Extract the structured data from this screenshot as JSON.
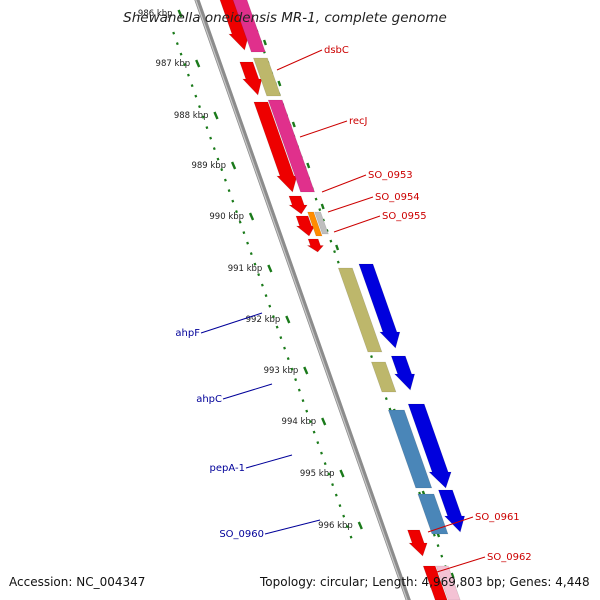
{
  "title": "Shewanella oneidensis MR-1, complete genome",
  "footer": {
    "accession": "Accession: NC_004347",
    "summary": "Topology: circular; Length: 4,969,803 bp; Genes: 4,448"
  },
  "kbp_ticks": [
    {
      "label": "986 kbp",
      "pos": 986
    },
    {
      "label": "987 kbp",
      "pos": 987
    },
    {
      "label": "988 kbp",
      "pos": 988
    },
    {
      "label": "989 kbp",
      "pos": 989
    },
    {
      "label": "990 kbp",
      "pos": 990
    },
    {
      "label": "991 kbp",
      "pos": 991
    },
    {
      "label": "992 kbp",
      "pos": 992
    },
    {
      "label": "993 kbp",
      "pos": 993
    },
    {
      "label": "994 kbp",
      "pos": 994
    },
    {
      "label": "995 kbp",
      "pos": 995
    },
    {
      "label": "996 kbp",
      "pos": 996
    }
  ],
  "colors": {
    "backbone": "#8c8c8c",
    "gene_forward": "#ee0000",
    "gene_reverse": "#0000dd",
    "cog_magenta": "#e0308c",
    "cog_khaki": "#bdb76b",
    "cog_steelblue": "#4a86b8",
    "cog_orange": "#ff8c00",
    "cog_grey": "#bfbfbf",
    "tick_green": "#1a7a1a",
    "label_red": "#cc0000",
    "label_blue": "#000099"
  },
  "gene_labels": [
    {
      "text": "dsbC",
      "strand": "forward"
    },
    {
      "text": "recJ",
      "strand": "forward"
    },
    {
      "text": "SO_0953",
      "strand": "forward"
    },
    {
      "text": "SO_0954",
      "strand": "forward"
    },
    {
      "text": "SO_0955",
      "strand": "forward"
    },
    {
      "text": "ahpF",
      "strand": "reverse"
    },
    {
      "text": "ahpC",
      "strand": "reverse"
    },
    {
      "text": "pepA-1",
      "strand": "reverse"
    },
    {
      "text": "SO_0960",
      "strand": "reverse"
    },
    {
      "text": "SO_0961",
      "strand": "forward"
    },
    {
      "text": "SO_0962",
      "strand": "forward"
    }
  ]
}
